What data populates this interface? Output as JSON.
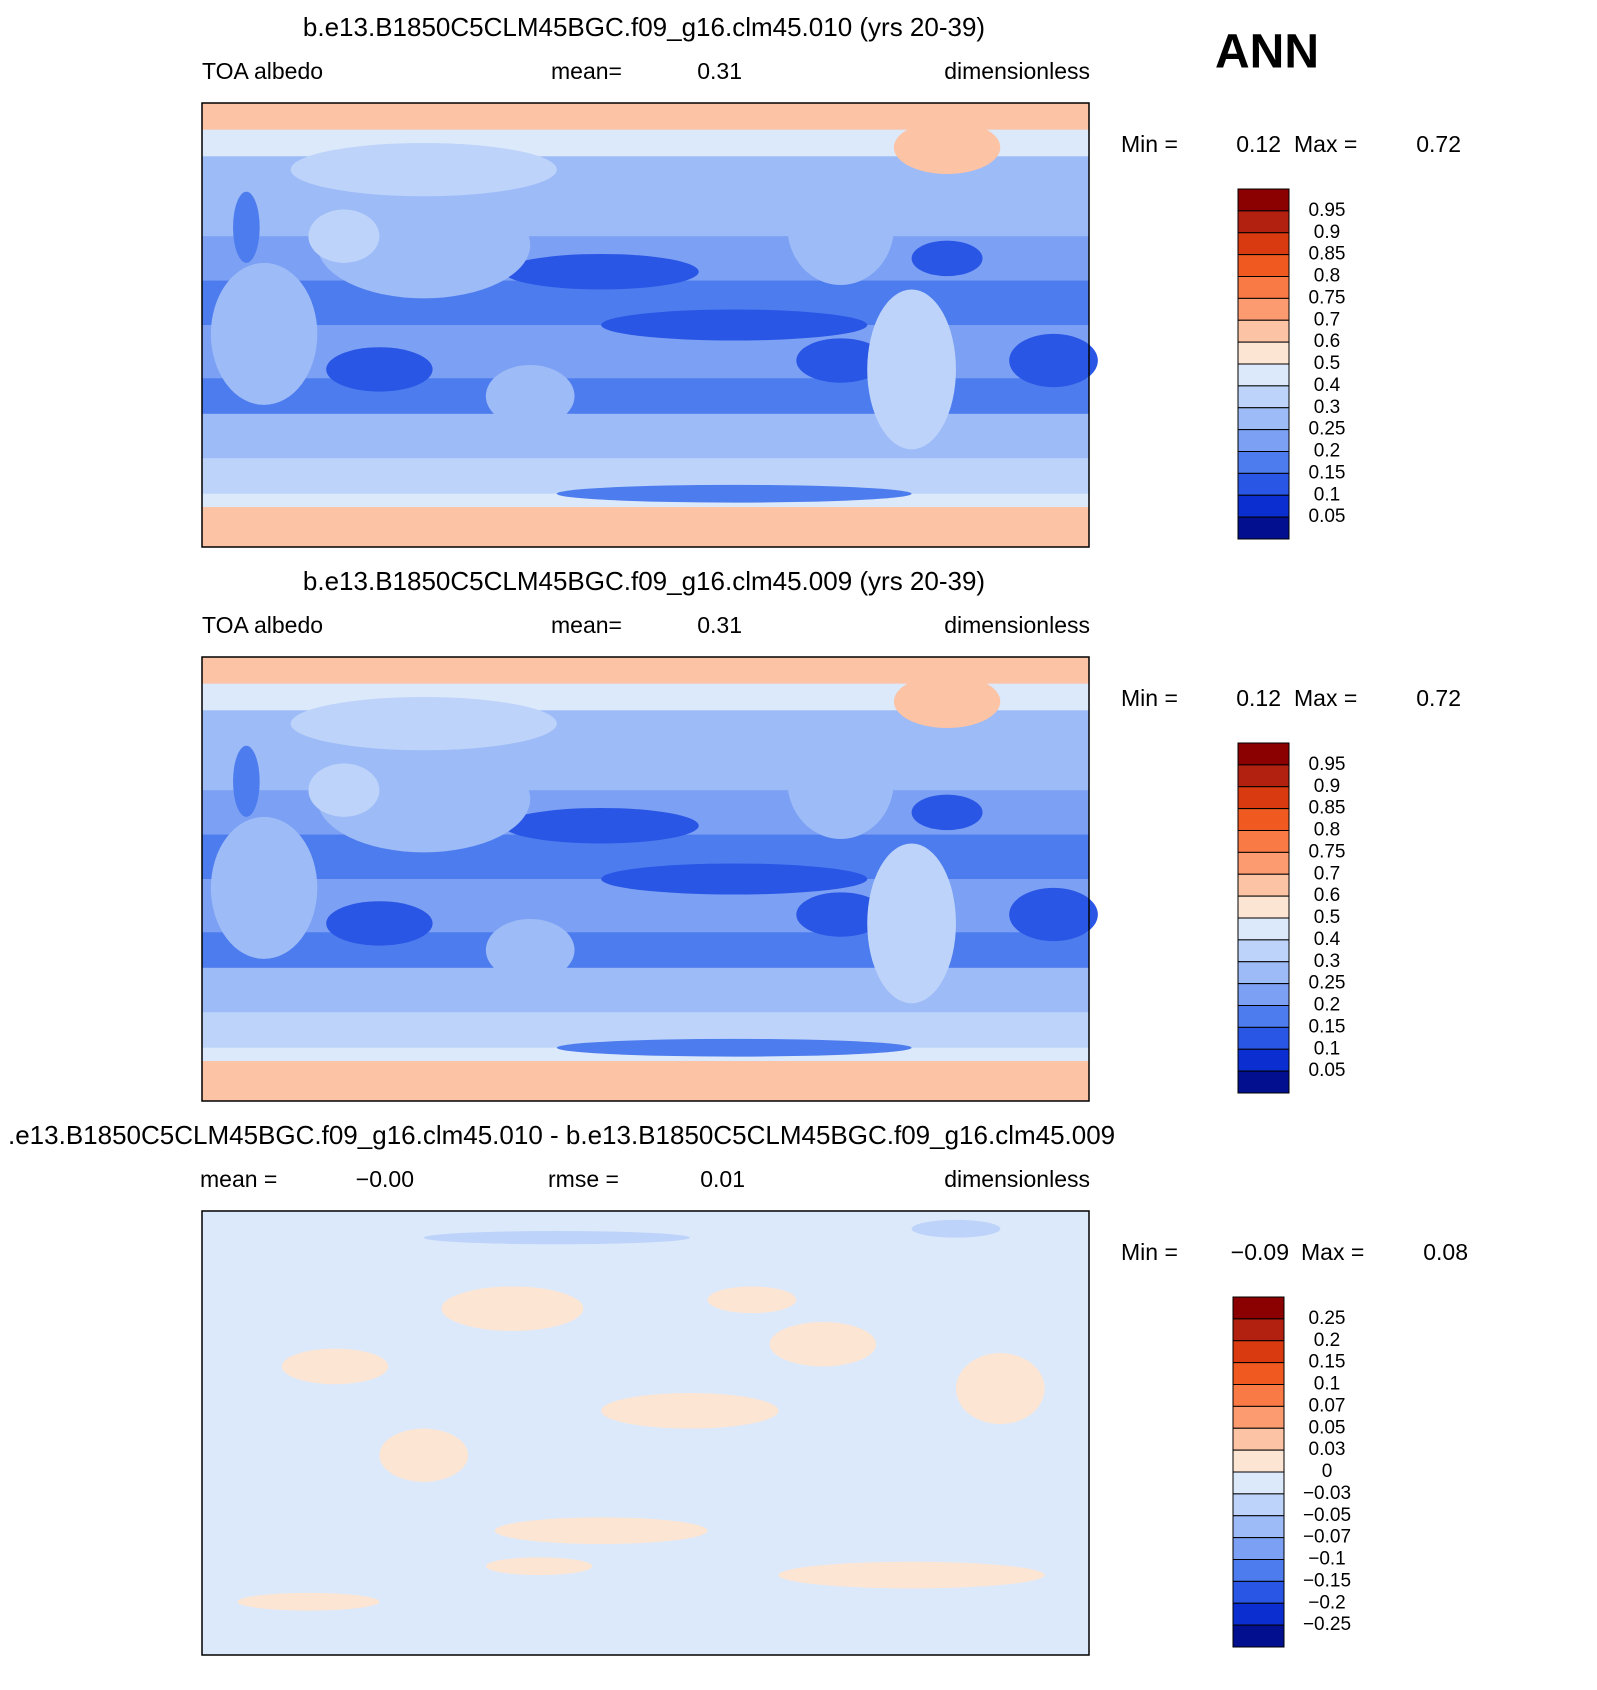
{
  "season": "ANN",
  "panels": [
    {
      "title": "b.e13.B1850C5CLM45BGC.f09_g16.clm45.010 (yrs 20-39)",
      "variable": "TOA albedo",
      "mean_label": "mean=",
      "mean": "0.31",
      "units": "dimensionless",
      "min_label": "Min =",
      "min": "0.12",
      "max_label": "Max =",
      "max": "0.72",
      "colorbar": {
        "labels": [
          "0.95",
          "0.9",
          "0.85",
          "0.8",
          "0.75",
          "0.7",
          "0.6",
          "0.5",
          "0.4",
          "0.3",
          "0.25",
          "0.2",
          "0.15",
          "0.1",
          "0.05"
        ],
        "colors": [
          "#8b0000",
          "#b22010",
          "#d93a10",
          "#f05a20",
          "#fa7a45",
          "#fc9b70",
          "#fcc3a5",
          "#fde5d3",
          "#dce9fb",
          "#bdd3fa",
          "#9dbbf7",
          "#7ca0f3",
          "#4d7cee",
          "#2a56e6",
          "#0a2ed0",
          "#020f8e"
        ]
      }
    },
    {
      "title": "b.e13.B1850C5CLM45BGC.f09_g16.clm45.009 (yrs 20-39)",
      "variable": "TOA albedo",
      "mean_label": "mean=",
      "mean": "0.31",
      "units": "dimensionless",
      "min_label": "Min =",
      "min": "0.12",
      "max_label": "Max =",
      "max": "0.72",
      "colorbar": {
        "labels": [
          "0.95",
          "0.9",
          "0.85",
          "0.8",
          "0.75",
          "0.7",
          "0.6",
          "0.5",
          "0.4",
          "0.3",
          "0.25",
          "0.2",
          "0.15",
          "0.1",
          "0.05"
        ],
        "colors": [
          "#8b0000",
          "#b22010",
          "#d93a10",
          "#f05a20",
          "#fa7a45",
          "#fc9b70",
          "#fcc3a5",
          "#fde5d3",
          "#dce9fb",
          "#bdd3fa",
          "#9dbbf7",
          "#7ca0f3",
          "#4d7cee",
          "#2a56e6",
          "#0a2ed0",
          "#020f8e"
        ]
      }
    },
    {
      "title": ".e13.B1850C5CLM45BGC.f09_g16.clm45.010 - b.e13.B1850C5CLM45BGC.f09_g16.clm45.009",
      "mean_label": "mean =",
      "mean": "−0.00",
      "rmse_label": "rmse =",
      "rmse": "0.01",
      "units": "dimensionless",
      "min_label": "Min =",
      "min": "−0.09",
      "max_label": "Max =",
      "max": "0.08",
      "colorbar": {
        "labels": [
          "0.25",
          "0.2",
          "0.15",
          "0.1",
          "0.07",
          "0.05",
          "0.03",
          "0",
          "−0.03",
          "−0.05",
          "−0.07",
          "−0.1",
          "−0.15",
          "−0.2",
          "−0.25"
        ],
        "colors": [
          "#8b0000",
          "#b22010",
          "#d93a10",
          "#f05a20",
          "#fa7a45",
          "#fc9b70",
          "#fcc3a5",
          "#fde5d3",
          "#dce9fb",
          "#bdd3fa",
          "#9dbbf7",
          "#7ca0f3",
          "#4d7cee",
          "#2a56e6",
          "#0a2ed0",
          "#020f8e"
        ]
      }
    }
  ]
}
